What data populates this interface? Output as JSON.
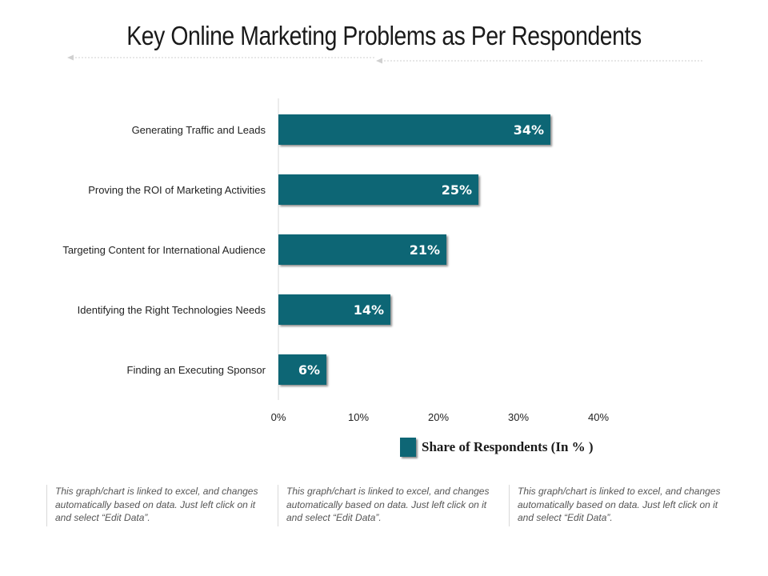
{
  "title": "Key Online Marketing Problems as Per Respondents",
  "chart_data": {
    "type": "bar",
    "orientation": "horizontal",
    "categories": [
      "Generating Traffic and Leads",
      "Proving the ROI of Marketing Activities",
      "Targeting Content for International Audience",
      "Identifying the Right Technologies Needs",
      "Finding an Executing Sponsor"
    ],
    "series": [
      {
        "name": "Share of Respondents (In % )",
        "values": [
          34,
          25,
          21,
          14,
          6
        ],
        "labels": [
          "34%",
          "25%",
          "21%",
          "14%",
          "6%"
        ]
      }
    ],
    "xlim": [
      0,
      40
    ],
    "xticks": [
      0,
      10,
      20,
      30,
      40
    ],
    "xtick_labels": [
      "0%",
      "10%",
      "20%",
      "30%",
      "40%"
    ],
    "grid": false,
    "legend_position": "bottom",
    "bar_color": "#0e6675"
  },
  "notes": [
    "This graph/chart is linked to excel, and changes automatically based on data. Just left click on it and select “Edit Data”.",
    "This graph/chart is linked to excel, and changes automatically based on data. Just left click on it and select “Edit Data”.",
    "This graph/chart is linked to excel, and changes automatically based on data. Just left click on it and select “Edit Data”."
  ]
}
